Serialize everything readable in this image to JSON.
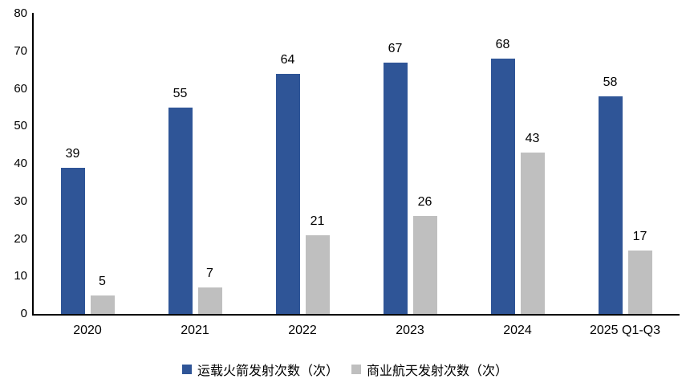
{
  "chart_data": {
    "type": "bar",
    "title": "",
    "xlabel": "",
    "ylabel": "",
    "categories": [
      "2020",
      "2021",
      "2022",
      "2023",
      "2024",
      "2025 Q1-Q3"
    ],
    "series": [
      {
        "name": "运载火箭发射次数（次）",
        "color": "#2F5597",
        "values": [
          39,
          55,
          64,
          67,
          68,
          58
        ]
      },
      {
        "name": "商业航天发射次数（次）",
        "color": "#BFBFBF",
        "values": [
          5,
          7,
          21,
          26,
          43,
          17
        ]
      }
    ],
    "ylim": [
      0,
      80
    ],
    "yticks": [
      0,
      10,
      20,
      30,
      40,
      50,
      60,
      70,
      80
    ],
    "grid": false,
    "legend_position": "bottom",
    "data_labels": true,
    "axis_color": "#000000",
    "background_color": "#FFFFFF"
  }
}
